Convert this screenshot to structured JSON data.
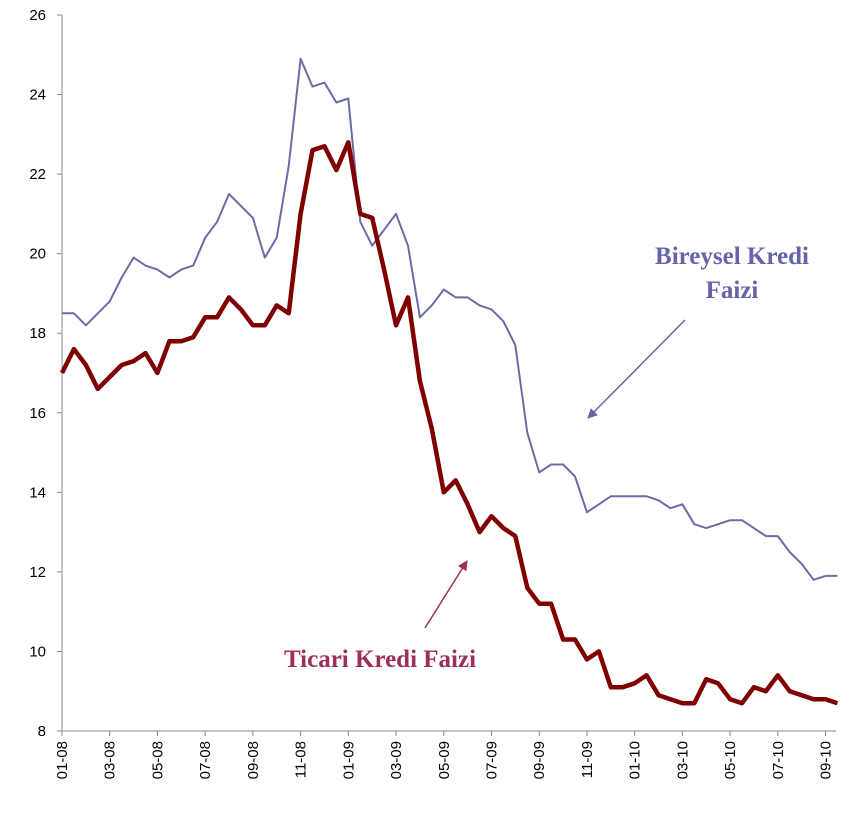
{
  "chart_data": {
    "type": "line",
    "categories": [
      "01-08",
      null,
      null,
      null,
      "03-08",
      null,
      null,
      null,
      "05-08",
      null,
      null,
      null,
      "07-08",
      null,
      null,
      null,
      "09-08",
      null,
      null,
      null,
      "11-08",
      null,
      null,
      null,
      "01-09",
      null,
      null,
      null,
      "03-09",
      null,
      null,
      null,
      "05-09",
      null,
      null,
      null,
      "07-09",
      null,
      null,
      null,
      "09-09",
      null,
      null,
      null,
      "11-09",
      null,
      null,
      null,
      "01-10",
      null,
      null,
      null,
      "03-10",
      null,
      null,
      null,
      "05-10",
      null,
      null,
      null,
      "07-10",
      null,
      null,
      null,
      "09-10",
      null
    ],
    "series": [
      {
        "name": "Bireysel Kredi Faizi",
        "color": "#6b6ba8",
        "width": 2,
        "values": [
          18.5,
          18.5,
          18.2,
          18.5,
          18.8,
          19.4,
          19.9,
          19.7,
          19.6,
          19.4,
          19.6,
          19.7,
          20.4,
          20.8,
          21.5,
          21.2,
          20.9,
          19.9,
          20.4,
          22.2,
          24.9,
          24.2,
          24.3,
          23.8,
          23.9,
          20.8,
          20.2,
          20.6,
          21.0,
          20.2,
          18.4,
          18.7,
          19.1,
          18.9,
          18.9,
          18.7,
          18.6,
          18.3,
          17.7,
          15.5,
          14.5,
          14.7,
          14.7,
          14.4,
          13.5,
          13.7,
          13.9,
          13.9,
          13.9,
          13.9,
          13.8,
          13.6,
          13.7,
          13.2,
          13.1,
          13.2,
          13.3,
          13.3,
          13.1,
          12.9,
          12.9,
          12.5,
          12.2,
          11.8,
          11.9,
          11.9
        ]
      },
      {
        "name": "Ticari Kredi Faizi",
        "color": "#800000",
        "width": 4.5,
        "values": [
          17.0,
          17.6,
          17.2,
          16.6,
          16.9,
          17.2,
          17.3,
          17.5,
          17.0,
          17.8,
          17.8,
          17.9,
          18.4,
          18.4,
          18.9,
          18.6,
          18.2,
          18.2,
          18.7,
          18.5,
          21.0,
          22.6,
          22.7,
          22.1,
          22.8,
          21.0,
          20.9,
          19.6,
          18.2,
          18.9,
          16.8,
          15.6,
          14.0,
          14.3,
          13.7,
          13.0,
          13.4,
          13.1,
          12.9,
          11.6,
          11.2,
          11.2,
          10.3,
          10.3,
          9.8,
          10.0,
          9.1,
          9.1,
          9.2,
          9.4,
          8.9,
          8.8,
          8.7,
          8.7,
          9.3,
          9.2,
          8.8,
          8.7,
          9.1,
          9.0,
          9.4,
          9.0,
          8.9,
          8.8,
          8.8,
          8.7
        ]
      }
    ],
    "annotations": [
      {
        "text": [
          "Bireysel Kredi",
          "Faizi"
        ],
        "color": "#6464a8"
      },
      {
        "text": [
          "Ticari Kredi Faizi"
        ],
        "color": "#9c2f5c"
      }
    ],
    "ylim": [
      8,
      26
    ],
    "yticks": [
      8,
      10,
      12,
      14,
      16,
      18,
      20,
      22,
      24,
      26
    ],
    "grid": false
  }
}
